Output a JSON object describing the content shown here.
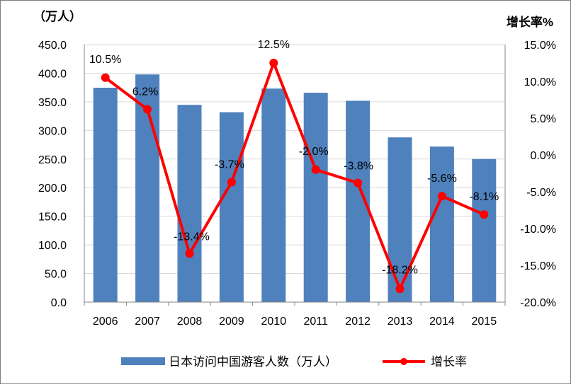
{
  "chart_data": {
    "type": "bar+line",
    "categories": [
      "2006",
      "2007",
      "2008",
      "2009",
      "2010",
      "2011",
      "2012",
      "2013",
      "2014",
      "2015"
    ],
    "series": [
      {
        "name": "日本访问中国游客人数（万人）",
        "kind": "bar",
        "axis": "left",
        "color": "#4f81bd",
        "values": [
          374.6,
          397.8,
          344.6,
          331.8,
          373.1,
          365.8,
          351.8,
          287.8,
          271.8,
          250.0
        ]
      },
      {
        "name": "增长率",
        "kind": "line",
        "axis": "right",
        "color": "#ff0000",
        "values": [
          10.5,
          6.2,
          -13.4,
          -3.7,
          12.5,
          -2.0,
          -3.8,
          -18.2,
          -5.6,
          -8.1
        ],
        "labels": [
          "10.5%",
          "6.2%",
          "-13.4%",
          "-3.7%",
          "12.5%",
          "-2.0%",
          "-3.8%",
          "-18.2%",
          "-5.6%",
          "-8.1%"
        ]
      }
    ],
    "left_axis": {
      "unit_label": "（万人）",
      "ylim": [
        0,
        450
      ],
      "ticks": [
        0,
        50,
        100,
        150,
        200,
        250,
        300,
        350,
        400,
        450
      ],
      "tick_labels": [
        "0.0",
        "50.0",
        "100.0",
        "150.0",
        "200.0",
        "250.0",
        "300.0",
        "350.0",
        "400.0",
        "450.0"
      ]
    },
    "right_axis": {
      "unit_label": "增长率%",
      "ylim": [
        -20,
        15
      ],
      "ticks": [
        -20,
        -15,
        -10,
        -5,
        0,
        5,
        10,
        15
      ],
      "tick_labels": [
        "-20.0%",
        "-15.0%",
        "-10.0%",
        "-5.0%",
        "0.0%",
        "5.0%",
        "10.0%",
        "15.0%"
      ]
    },
    "grid": true,
    "legend_position": "bottom"
  }
}
